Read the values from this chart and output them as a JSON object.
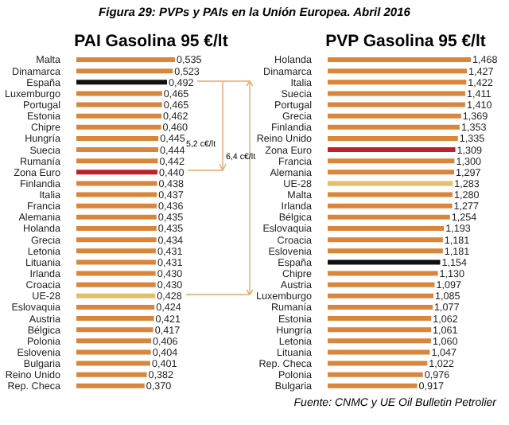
{
  "chart_data": [
    {
      "type": "bar",
      "orientation": "horizontal",
      "title": "PAI Gasolina 95 €/lt",
      "tick_labels": false,
      "categories": [
        "Malta",
        "Dinamarca",
        "España",
        "Luxemburgo",
        "Portugal",
        "Estonia",
        "Chipre",
        "Hungría",
        "Suecia",
        "Rumanía",
        "Zona Euro",
        "Finlandia",
        "Italia",
        "Francia",
        "Alemania",
        "Holanda",
        "Grecia",
        "Letonia",
        "Lituania",
        "Irlanda",
        "Croacia",
        "UE-28",
        "Eslovaquia",
        "Austria",
        "Bélgica",
        "Polonia",
        "Eslovenia",
        "Bulgaria",
        "Reino Unido",
        "Rep. Checa"
      ],
      "values": [
        0.535,
        0.523,
        0.492,
        0.465,
        0.465,
        0.462,
        0.46,
        0.445,
        0.444,
        0.442,
        0.44,
        0.438,
        0.437,
        0.436,
        0.435,
        0.435,
        0.434,
        0.431,
        0.431,
        0.43,
        0.43,
        0.428,
        0.424,
        0.421,
        0.417,
        0.406,
        0.404,
        0.401,
        0.382,
        0.37
      ],
      "value_labels": [
        "0,535",
        "0,523",
        "0,492",
        "0,465",
        "0,465",
        "0,462",
        "0,460",
        "0,445",
        "0,444",
        "0,442",
        "0,440",
        "0,438",
        "0,437",
        "0,436",
        "0,435",
        "0,435",
        "0,434",
        "0,431",
        "0,431",
        "0,430",
        "0,430",
        "0,428",
        "0,424",
        "0,421",
        "0,417",
        "0,406",
        "0,404",
        "0,401",
        "0,382",
        "0,370"
      ],
      "colors": [
        "#d9853b",
        "#d9853b",
        "#111111",
        "#d9853b",
        "#d9853b",
        "#d9853b",
        "#d9853b",
        "#d9853b",
        "#d9853b",
        "#d9853b",
        "#c0202a",
        "#d9853b",
        "#d9853b",
        "#d9853b",
        "#d9853b",
        "#d9853b",
        "#d9853b",
        "#d9853b",
        "#d9853b",
        "#d9853b",
        "#d9853b",
        "#e3bf6a",
        "#d9853b",
        "#d9853b",
        "#d9853b",
        "#d9853b",
        "#d9853b",
        "#d9853b",
        "#d9853b",
        "#d9853b"
      ],
      "annotations": [
        "Figura 29: PVPs y PAIs en la Unión Europea. Abril 2016",
        "5,2 c€/lt",
        "6,4 c€/lt"
      ]
    },
    {
      "type": "bar",
      "orientation": "horizontal",
      "title": "PVP Gasolina 95 €/lt",
      "tick_labels": false,
      "categories": [
        "Holanda",
        "Dinamarca",
        "Italia",
        "Suecia",
        "Portugal",
        "Grecia",
        "Finlandia",
        "Reino Unido",
        "Zona Euro",
        "Francia",
        "Alemania",
        "UE-28",
        "Malta",
        "Irlanda",
        "Bélgica",
        "Eslovaquia",
        "Croacia",
        "Eslovenia",
        "España",
        "Chipre",
        "Austria",
        "Luxemburgo",
        "Rumanía",
        "Estonia",
        "Hungría",
        "Letonia",
        "Lituania",
        "Rep. Checa",
        "Polonia",
        "Bulgaria"
      ],
      "values": [
        1.468,
        1.427,
        1.422,
        1.411,
        1.41,
        1.369,
        1.353,
        1.335,
        1.309,
        1.3,
        1.297,
        1.283,
        1.28,
        1.277,
        1.254,
        1.193,
        1.181,
        1.181,
        1.154,
        1.13,
        1.097,
        1.085,
        1.077,
        1.062,
        1.061,
        1.06,
        1.047,
        1.022,
        0.976,
        0.917
      ],
      "value_labels": [
        "1,468",
        "1,427",
        "1,422",
        "1,411",
        "1,410",
        "1,369",
        "1,353",
        "1,335",
        "1,309",
        "1,300",
        "1,297",
        "1,283",
        "1,280",
        "1,277",
        "1,254",
        "1,193",
        "1,181",
        "1,181",
        "1,154",
        "1,130",
        "1,097",
        "1,085",
        "1,077",
        "1,062",
        "1,061",
        "1,060",
        "1,047",
        "1,022",
        "0,976",
        "0,917"
      ],
      "colors": [
        "#d9853b",
        "#d9853b",
        "#d9853b",
        "#d9853b",
        "#d9853b",
        "#d9853b",
        "#d9853b",
        "#d9853b",
        "#c0202a",
        "#d9853b",
        "#d9853b",
        "#e3bf6a",
        "#d9853b",
        "#d9853b",
        "#d9853b",
        "#d9853b",
        "#d9853b",
        "#d9853b",
        "#111111",
        "#d9853b",
        "#d9853b",
        "#d9853b",
        "#d9853b",
        "#d9853b",
        "#d9853b",
        "#d9853b",
        "#d9853b",
        "#d9853b",
        "#d9853b",
        "#d9853b"
      ],
      "annotations": [
        "Fuente: CNMC y UE Oil Bulletin Petrolier"
      ]
    }
  ]
}
